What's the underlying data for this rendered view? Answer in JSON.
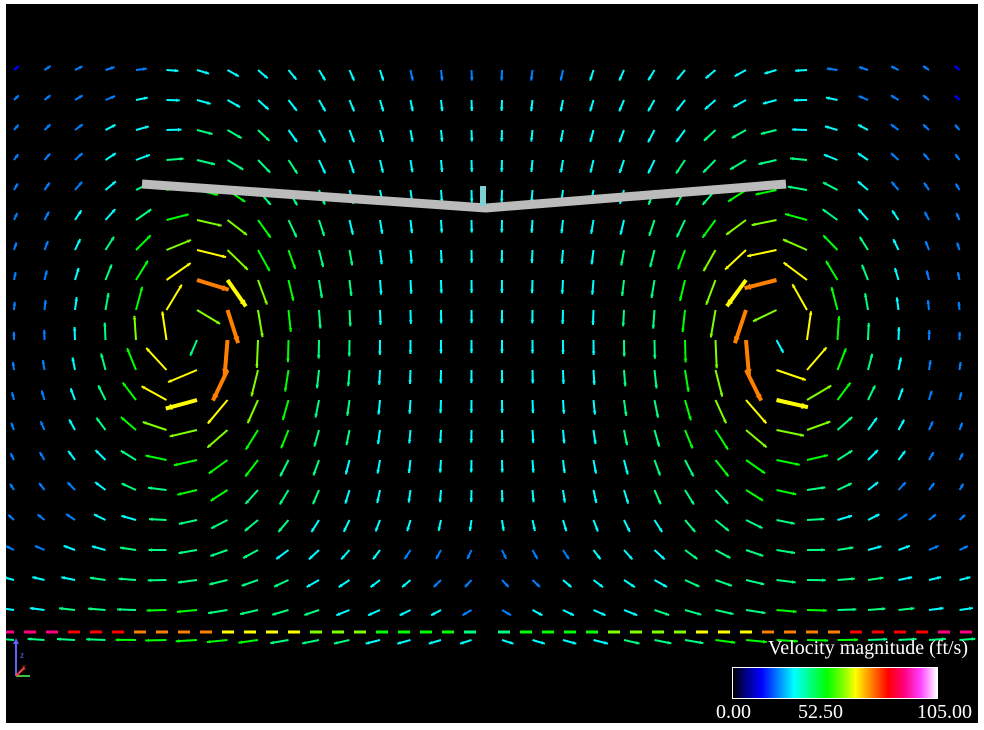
{
  "colors": {
    "background": "#000000",
    "wing": "#bbbbbb",
    "scale": [
      "#000080",
      "#0000ff",
      "#0080ff",
      "#00ffff",
      "#00ff80",
      "#00ff00",
      "#80ff00",
      "#ffff00",
      "#ff8000",
      "#ff0000",
      "#ff0080",
      "#ff40ff",
      "#ffffff"
    ]
  },
  "legend": {
    "title": "Velocity magnitude (ft/s)",
    "min_label": "0.00",
    "mid_label": "52.50",
    "max_label": "105.00",
    "min": 0,
    "max": 105
  },
  "icons": {
    "axes": "axes-triad-icon"
  }
}
